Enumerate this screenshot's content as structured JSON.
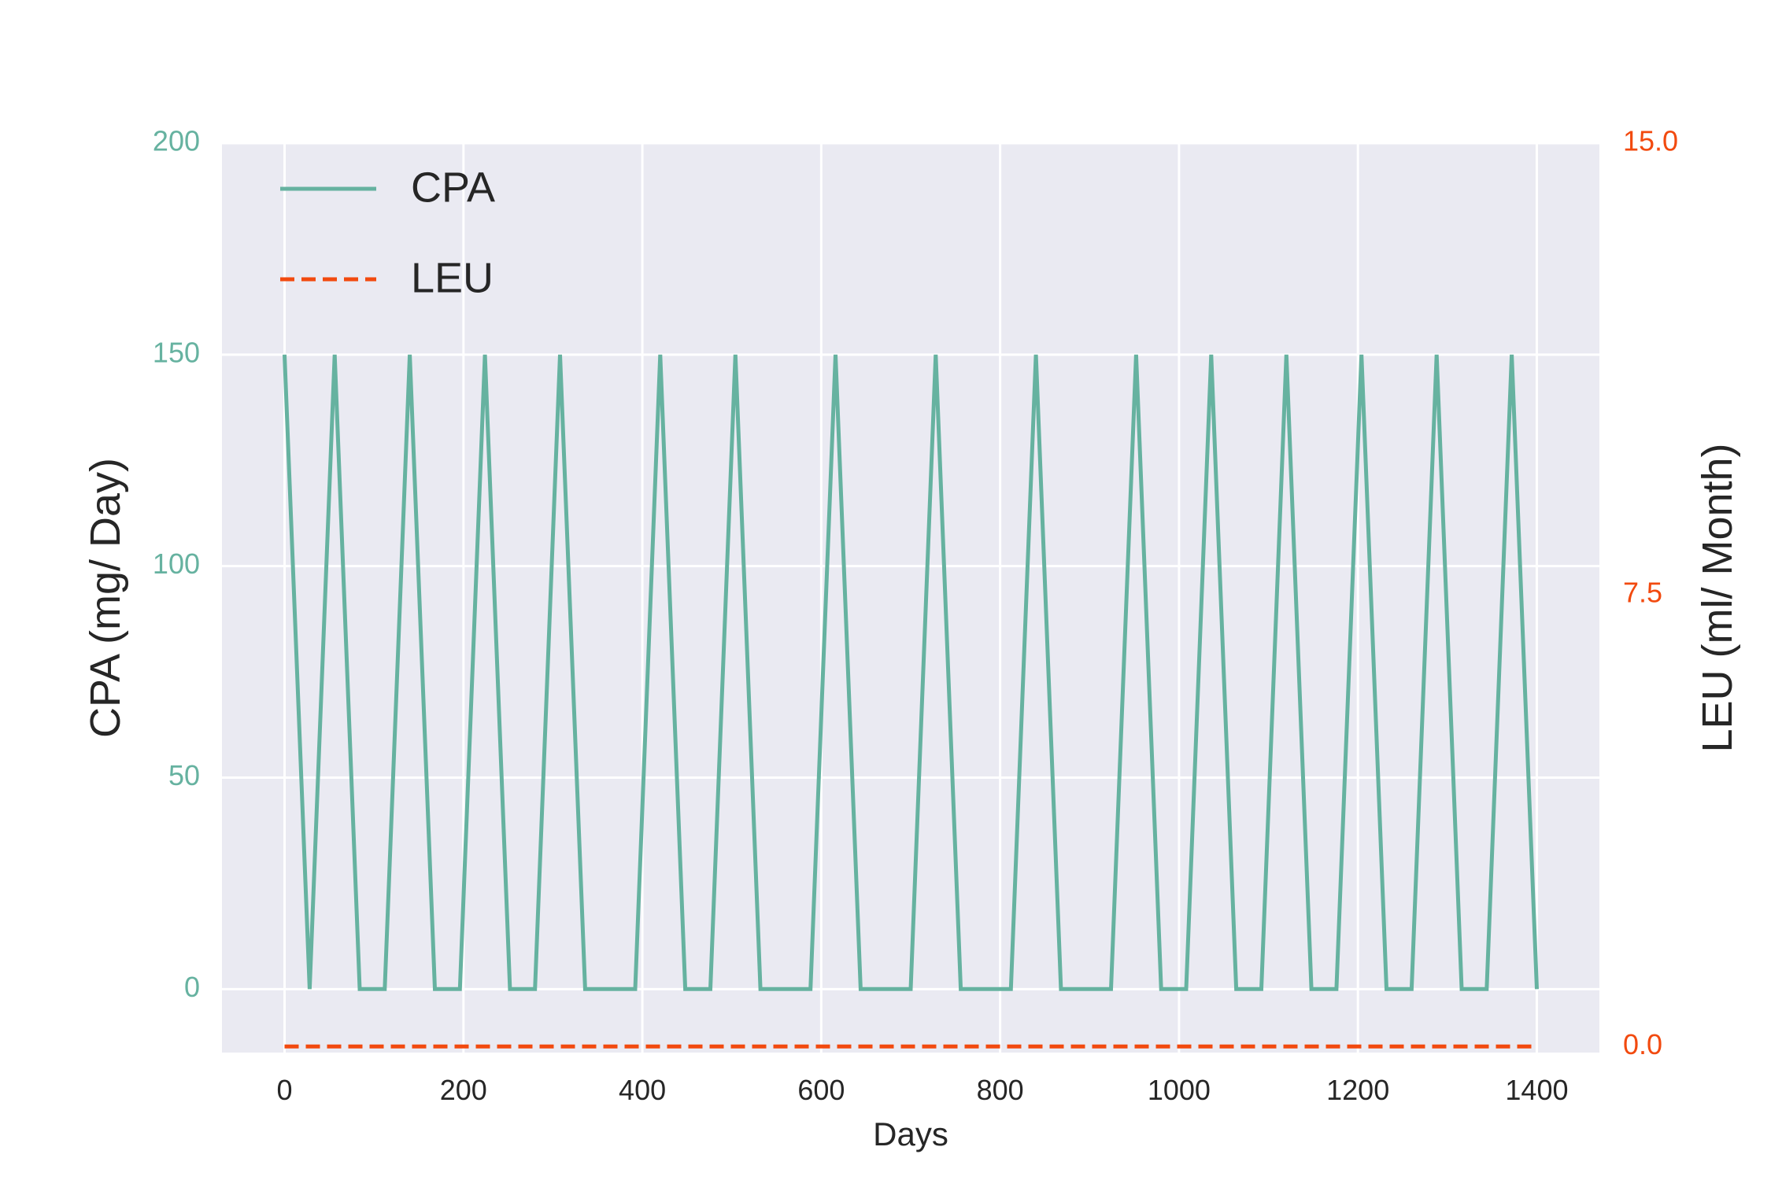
{
  "chart_data": {
    "type": "line",
    "xlabel": "Days",
    "ylabel_left": "CPA (mg/ Day)",
    "ylabel_right": "LEU (ml/ Month)",
    "xlim": [
      -70,
      1470
    ],
    "ylim_left": [
      -15,
      200
    ],
    "ylim_right": [
      -0.1,
      15.0
    ],
    "xticks": [
      0,
      200,
      400,
      600,
      800,
      1000,
      1200,
      1400
    ],
    "xtick_labels": [
      "0",
      "200",
      "400",
      "600",
      "800",
      "1000",
      "1200",
      "1400"
    ],
    "yticks_left": [
      0,
      50,
      100,
      150,
      200
    ],
    "ytick_labels_left": [
      "0",
      "50",
      "100",
      "150",
      "200"
    ],
    "yticks_right": [
      0.0,
      7.5,
      15.0
    ],
    "ytick_labels_right": [
      "0.0",
      "7.5",
      "15.0"
    ],
    "grid": true,
    "legend_position": "top-left",
    "colors": {
      "cpa": "#66b2a0",
      "leu": "#f24a0f",
      "plot_bg": "#eaeaf2",
      "grid": "#ffffff",
      "text": "#262626"
    },
    "series": [
      {
        "name": "CPA",
        "axis": "left",
        "style": "solid",
        "x": [
          0,
          28,
          56,
          84,
          112,
          140,
          168,
          196,
          224,
          252,
          280,
          308,
          336,
          364,
          392,
          420,
          448,
          476,
          504,
          532,
          560,
          588,
          616,
          644,
          672,
          700,
          728,
          756,
          784,
          812,
          840,
          868,
          896,
          924,
          952,
          980,
          1008,
          1036,
          1064,
          1092,
          1120,
          1148,
          1176,
          1204,
          1232,
          1260,
          1288,
          1316,
          1344,
          1372,
          1400
        ],
        "y": [
          150,
          0,
          150,
          0,
          0,
          150,
          0,
          0,
          150,
          0,
          0,
          150,
          0,
          0,
          0,
          150,
          0,
          0,
          150,
          0,
          0,
          0,
          150,
          0,
          0,
          0,
          150,
          0,
          0,
          0,
          150,
          0,
          0,
          0,
          150,
          0,
          0,
          150,
          0,
          0,
          150,
          0,
          0,
          150,
          0,
          0,
          150,
          0,
          0,
          150,
          0
        ]
      },
      {
        "name": "LEU",
        "axis": "right",
        "style": "dashed",
        "x": [
          0,
          1400
        ],
        "y": [
          0.0,
          0.0
        ]
      }
    ]
  }
}
